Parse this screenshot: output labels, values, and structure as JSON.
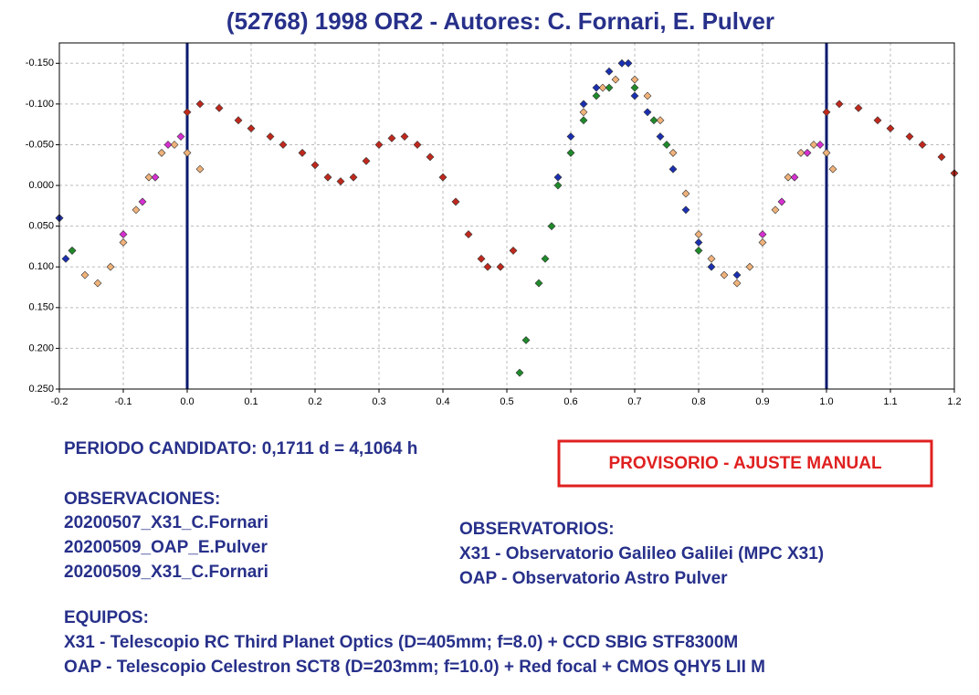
{
  "chart_data": {
    "type": "scatter",
    "title": "(52768) 1998 OR2 - Autores: C. Fornari, E. Pulver",
    "xlim": [
      -0.2,
      1.2
    ],
    "xticks": [
      {
        "value": -0.2,
        "label": "-0.2"
      },
      {
        "value": -0.1,
        "label": "-0.1"
      },
      {
        "value": 0,
        "label": "0.0"
      },
      0.1,
      0.2,
      0.3,
      0.4,
      0.5,
      0.6,
      0.7,
      0.8,
      0.9,
      {
        "value": 1,
        "label": "1.0"
      },
      1.1,
      1.2
    ],
    "ylim": [
      0.25,
      -0.175
    ],
    "yticks": [
      {
        "value": -0.15,
        "label": "-0.150"
      },
      {
        "value": -0.1,
        "label": "-0.100"
      },
      {
        "value": -0.05,
        "label": "-0.050"
      },
      {
        "value": 0,
        "label": "0.000"
      },
      {
        "value": 0.05,
        "label": "0.050"
      },
      {
        "value": 0.1,
        "label": "0.100"
      },
      {
        "value": 0.15,
        "label": "0.150"
      },
      {
        "value": 0.2,
        "label": "0.200"
      },
      {
        "value": 0.25,
        "label": "0.250"
      }
    ],
    "grid": true,
    "vlines": [
      0,
      1
    ],
    "vline_color": "#0a1a6e",
    "series": [
      {
        "color": "#c0281c",
        "x": [
          0.0,
          0.02,
          0.05,
          0.08,
          0.1,
          0.13,
          0.15,
          0.18,
          0.2,
          0.22,
          0.24,
          0.26,
          0.28,
          0.3,
          0.32,
          0.34,
          0.36,
          0.38,
          0.4,
          0.42,
          0.44,
          0.46,
          0.47,
          0.49,
          0.51,
          1.0,
          1.02,
          1.05,
          1.08,
          1.1,
          1.13,
          1.15,
          1.18,
          1.2
        ],
        "values": [
          -0.09,
          -0.1,
          -0.095,
          -0.08,
          -0.07,
          -0.06,
          -0.05,
          -0.04,
          -0.025,
          -0.01,
          -0.005,
          -0.01,
          -0.03,
          -0.05,
          -0.058,
          -0.06,
          -0.05,
          -0.035,
          -0.01,
          0.02,
          0.06,
          0.09,
          0.1,
          0.1,
          0.08,
          -0.09,
          -0.1,
          -0.095,
          -0.08,
          -0.07,
          -0.06,
          -0.05,
          -0.035,
          -0.015
        ]
      },
      {
        "color": "#f0b27a",
        "x": [
          0.0,
          0.02,
          0.62,
          0.65,
          0.67,
          0.7,
          0.72,
          0.74,
          0.76,
          0.78,
          0.8,
          0.82,
          0.84,
          0.86,
          0.88,
          0.9,
          0.92,
          0.94,
          0.96,
          0.98,
          1.0,
          1.01,
          -0.2,
          -0.18,
          -0.16,
          -0.14,
          -0.12,
          -0.1,
          -0.08,
          -0.06,
          -0.04,
          -0.02
        ],
        "values": [
          -0.04,
          -0.02,
          -0.09,
          -0.12,
          -0.13,
          -0.13,
          -0.11,
          -0.08,
          -0.04,
          0.01,
          0.06,
          0.09,
          0.11,
          0.12,
          0.1,
          0.07,
          0.03,
          -0.01,
          -0.04,
          -0.05,
          -0.04,
          -0.02,
          0.04,
          0.08,
          0.11,
          0.12,
          0.1,
          0.07,
          0.03,
          -0.01,
          -0.04,
          -0.05
        ]
      },
      {
        "color": "#1a2fb0",
        "x": [
          0.58,
          0.6,
          0.62,
          0.64,
          0.66,
          0.68,
          0.69,
          0.7,
          0.72,
          0.74,
          0.76,
          0.78,
          0.8,
          0.82,
          0.86,
          -0.19,
          -0.2
        ],
        "values": [
          -0.01,
          -0.06,
          -0.1,
          -0.12,
          -0.14,
          -0.15,
          -0.15,
          -0.11,
          -0.09,
          -0.06,
          -0.02,
          0.03,
          0.07,
          0.1,
          0.11,
          0.09,
          0.04
        ]
      },
      {
        "color": "#1f8a2a",
        "x": [
          0.52,
          0.53,
          0.55,
          0.56,
          0.57,
          0.58,
          0.6,
          0.62,
          0.64,
          0.66,
          0.7,
          0.73,
          0.75,
          0.8,
          -0.18
        ],
        "values": [
          0.23,
          0.19,
          0.12,
          0.09,
          0.05,
          0.0,
          -0.04,
          -0.08,
          -0.11,
          -0.12,
          -0.12,
          -0.08,
          -0.05,
          0.08,
          0.08
        ]
      },
      {
        "color": "#d62fd0",
        "x": [
          0.9,
          0.93,
          0.95,
          0.97,
          0.99,
          -0.1,
          -0.07,
          -0.05,
          -0.03,
          -0.01
        ],
        "values": [
          0.06,
          0.02,
          -0.01,
          -0.04,
          -0.05,
          0.06,
          0.02,
          -0.01,
          -0.05,
          -0.06
        ]
      }
    ]
  },
  "period": "PERIODO CANDIDATO: 0,1711 d = 4,1064 h",
  "status": "PROVISORIO - AJUSTE MANUAL",
  "observations": {
    "heading": "OBSERVACIONES:",
    "items": [
      "20200507_X31_C.Fornari",
      "20200509_OAP_E.Pulver",
      "20200509_X31_C.Fornari"
    ]
  },
  "observatories": {
    "heading": "OBSERVATORIOS:",
    "items": [
      "X31 - Observatorio Galileo Galilei (MPC X31)",
      "OAP - Observatorio Astro Pulver"
    ]
  },
  "equipment": {
    "heading": "EQUIPOS:",
    "items": [
      "X31 - Telescopio RC Third Planet Optics (D=405mm; f=8.0) + CCD SBIG STF8300M",
      "OAP - Telescopio Celestron SCT8 (D=203mm; f=10.0) + Red focal + CMOS QHY5 LII M"
    ]
  }
}
